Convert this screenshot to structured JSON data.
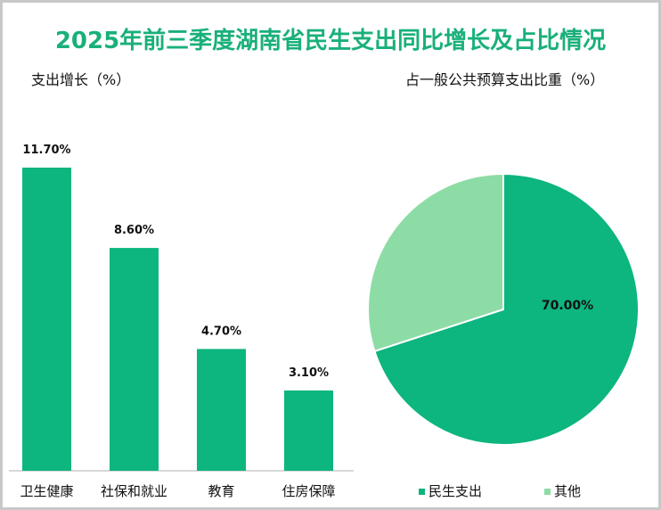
{
  "title": "2025年前三季度湖南省民生支出同比增长及占比情况",
  "colors": {
    "primary": "#0db57f",
    "secondary": "#8ddca6",
    "title": "#19b07a"
  },
  "chart_data": [
    {
      "type": "bar",
      "title": "支出增长（%）",
      "categories": [
        "卫生健康",
        "社保和就业",
        "教育",
        "住房保障"
      ],
      "values": [
        11.7,
        8.6,
        4.7,
        3.1
      ],
      "labels": [
        "11.70%",
        "8.60%",
        "4.70%",
        "3.10%"
      ],
      "ylim": [
        0,
        13
      ]
    },
    {
      "type": "pie",
      "title": "占一般公共预算支出比重（%）",
      "categories": [
        "民生支出",
        "其他"
      ],
      "values": [
        70,
        30
      ],
      "labels": [
        "70.00%",
        ""
      ],
      "legend": "bottom"
    }
  ]
}
